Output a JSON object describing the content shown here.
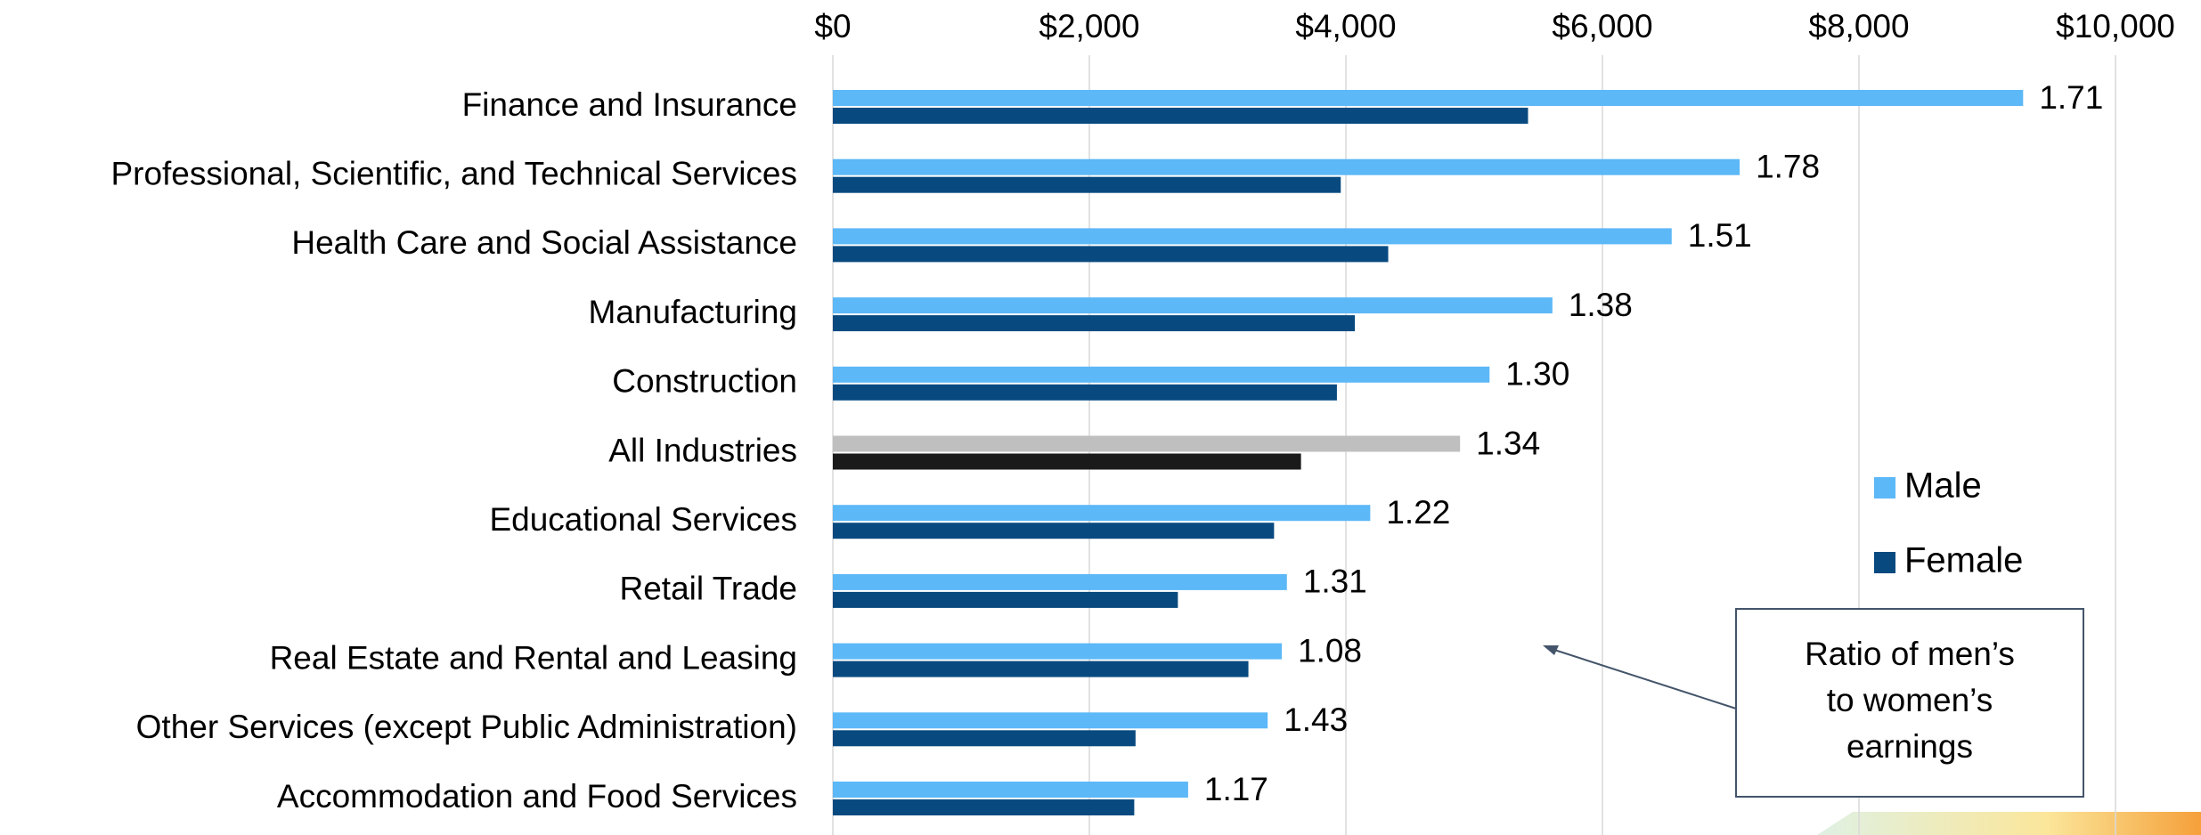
{
  "chart_data": {
    "type": "hbar",
    "categories": [
      "Finance and Insurance",
      "Professional, Scientific, and Technical Services",
      "Health Care and Social Assistance",
      "Manufacturing",
      "Construction",
      "All Industries",
      "Educational Services",
      "Retail Trade",
      "Real Estate and Rental and Leasing",
      "Other Services (except Public Administration)",
      "Accommodation and Food Services"
    ],
    "series": [
      {
        "name": "Male",
        "color": "#5cb8f7",
        "colors": [
          "#5cb8f7",
          "#5cb8f7",
          "#5cb8f7",
          "#5cb8f7",
          "#5cb8f7",
          "#bfbfbf",
          "#5cb8f7",
          "#5cb8f7",
          "#5cb8f7",
          "#5cb8f7",
          "#5cb8f7"
        ],
        "values": [
          9280,
          7070,
          6540,
          5610,
          5120,
          4890,
          4190,
          3540,
          3500,
          3390,
          2770
        ]
      },
      {
        "name": "Female",
        "color": "#084a80",
        "colors": [
          "#084a80",
          "#084a80",
          "#084a80",
          "#084a80",
          "#084a80",
          "#1a1a1a",
          "#084a80",
          "#084a80",
          "#084a80",
          "#084a80",
          "#084a80"
        ],
        "values": [
          5420,
          3960,
          4330,
          4070,
          3930,
          3650,
          3440,
          2690,
          3240,
          2360,
          2350
        ]
      }
    ],
    "ratio_labels": [
      "1.71",
      "1.78",
      "1.51",
      "1.38",
      "1.30",
      "1.34",
      "1.22",
      "1.31",
      "1.08",
      "1.43",
      "1.17"
    ],
    "annotation": "Ratio of men’s to women’s earnings",
    "xlim": [
      0,
      10000
    ],
    "xticks": [
      {
        "value": 0,
        "label": "$0"
      },
      {
        "value": 2000,
        "label": "$2,000"
      },
      {
        "value": 4000,
        "label": "$4,000"
      },
      {
        "value": 6000,
        "label": "$6,000"
      },
      {
        "value": 8000,
        "label": "$8,000"
      },
      {
        "value": 10000,
        "label": "$10,000"
      }
    ],
    "grid": true,
    "legend": "right"
  }
}
